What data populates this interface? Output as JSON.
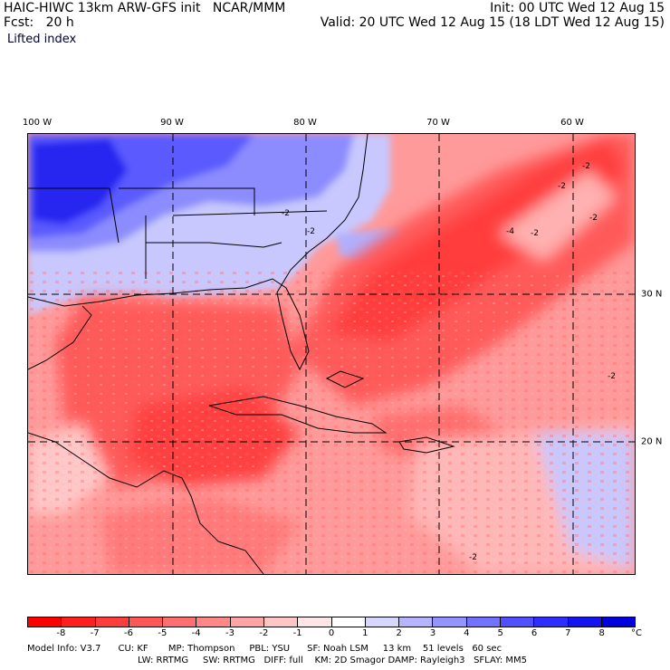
{
  "header": {
    "title": "HAIC-HIWC 13km ARW-GFS init   NCAR/MMM",
    "forecast": "Fcst:   20 h",
    "variable": "Lifted index",
    "init": "Init: 00 UTC Wed 12 Aug 15",
    "valid": "Valid: 20 UTC Wed 12 Aug 15 (18 LDT Wed 12 Aug 15)"
  },
  "longitude_labels": [
    "100 W",
    "90 W",
    "80 W",
    "70 W",
    "60 W"
  ],
  "latitude_labels": [
    "30 N",
    "20 N"
  ],
  "contour_labels": [
    "-2",
    "-2",
    "-2",
    "-2",
    "-4",
    "-2",
    "-2",
    "-2",
    "-2"
  ],
  "colorbar": {
    "tick_labels": [
      "-8",
      "-7",
      "-6",
      "-5",
      "-4",
      "-3",
      "-2",
      "-1",
      "0",
      "1",
      "2",
      "3",
      "4",
      "5",
      "6",
      "7",
      "8"
    ],
    "unit": "°C",
    "colors": [
      "#ff0000",
      "#ff1f1f",
      "#ff3d3d",
      "#ff5656",
      "#ff6f6f",
      "#ff8787",
      "#ffa4a4",
      "#ffc6c6",
      "#ffe6e6",
      "#ffffff",
      "#d6d6ff",
      "#b4b4ff",
      "#9494ff",
      "#7272ff",
      "#5050ff",
      "#2e2eff",
      "#1414f0",
      "#0000dc"
    ]
  },
  "footer": {
    "line1": "Model Info: V3.7      CU: KF       MP: Thompson     PBL: YSU      SF: Noah LSM     13 km    51 levels   60 sec",
    "line2": "LW: RRTMG     SW: RRTMG   DIFF: full    KM: 2D Smagor DAMP: Rayleigh3   SFLAY: MM5"
  },
  "colors": {
    "strong_negative": "#ff4a4a",
    "moderate_negative": "#ff8080",
    "weak_negative": "#ffc0c0",
    "positive": "#7070ff",
    "strong_positive": "#2020f0"
  }
}
